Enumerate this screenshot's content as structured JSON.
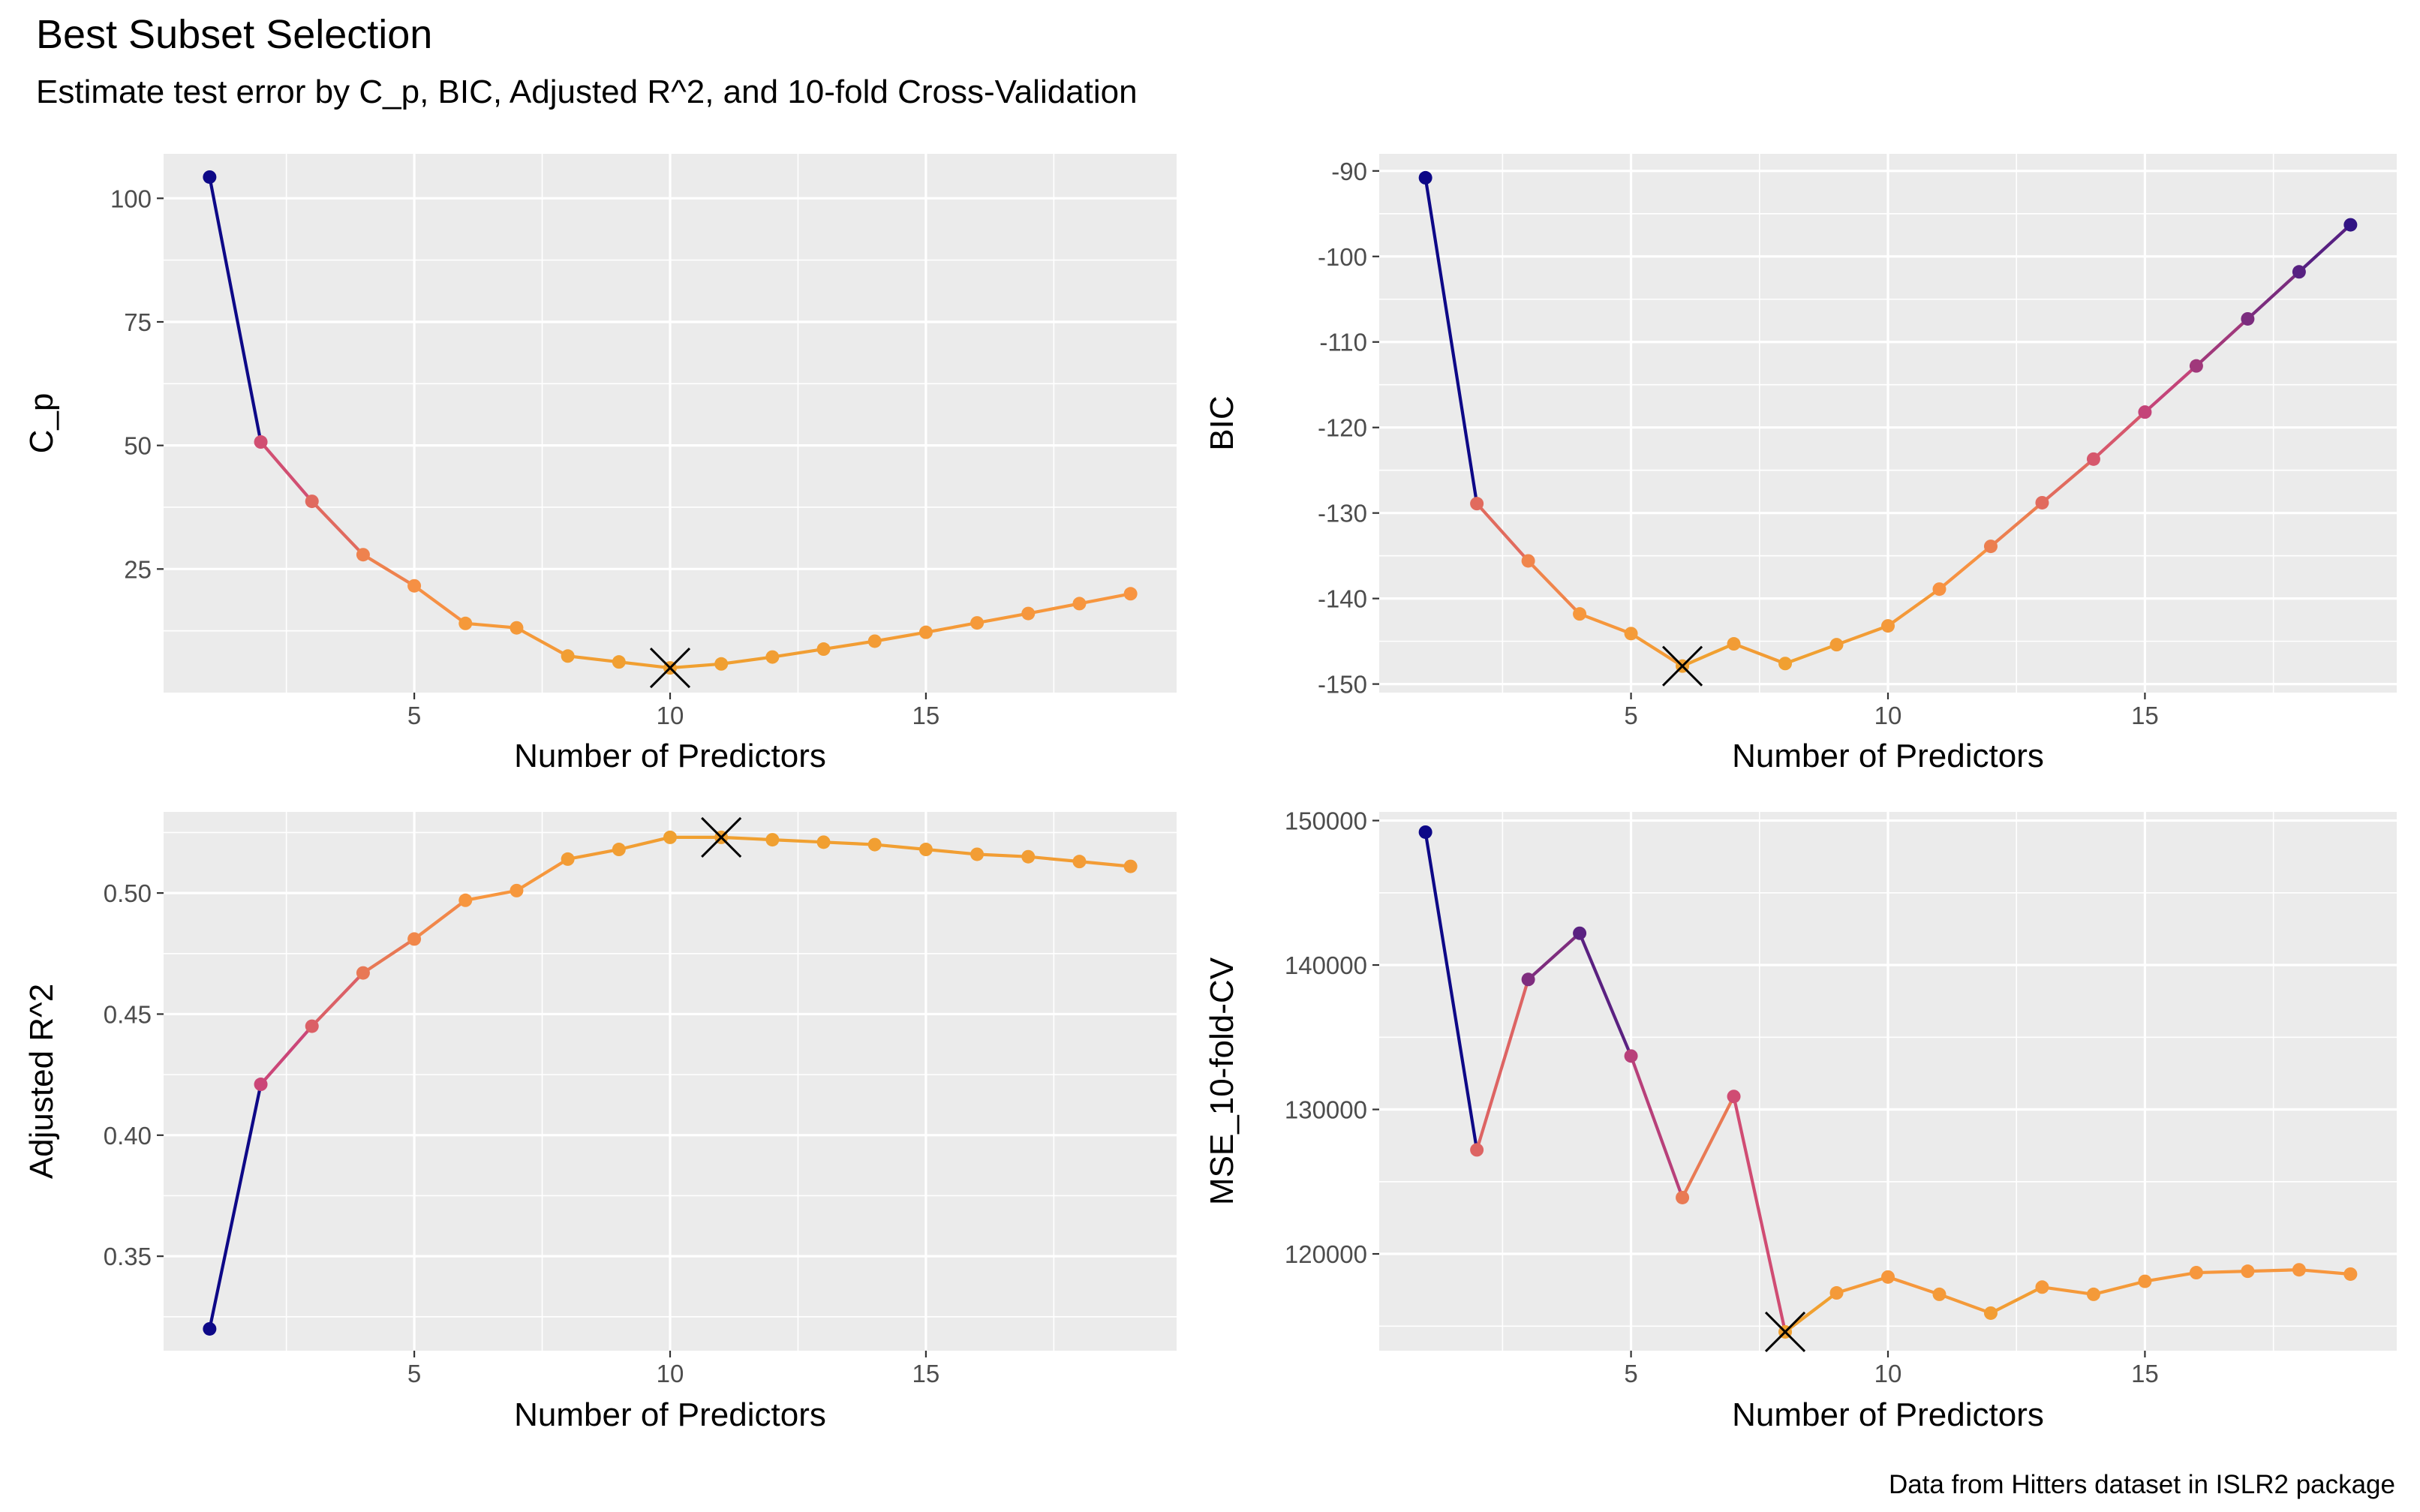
{
  "title": "Best Subset Selection",
  "subtitle": "Estimate test error by C_p, BIC, Adjusted R^2, and 10-fold Cross-Validation",
  "caption": "Data from Hitters dataset in ISLR2 package",
  "colors": {
    "low": "#0D0887",
    "mid": "#CC4678",
    "high": "#F89441",
    "top": "#F0A030"
  },
  "chart_data": [
    {
      "type": "line",
      "xlabel": "Number of Predictors",
      "ylabel": "C_p",
      "x": [
        1,
        2,
        3,
        4,
        5,
        6,
        7,
        8,
        9,
        10,
        11,
        12,
        13,
        14,
        15,
        16,
        17,
        18,
        19
      ],
      "values": [
        104.3,
        50.7,
        38.7,
        27.9,
        21.6,
        14.0,
        13.1,
        7.4,
        6.2,
        5.0,
        5.8,
        7.2,
        8.8,
        10.4,
        12.2,
        14.1,
        16.0,
        18.0,
        20.0
      ],
      "xlim": [
        0.1,
        19.9
      ],
      "ylim": [
        0,
        109
      ],
      "xticks": [
        5,
        10,
        15
      ],
      "yticks": [
        25,
        50,
        75,
        100
      ],
      "yticklabels": [
        "25",
        "50",
        "75",
        "100"
      ],
      "best": {
        "x": 10,
        "y": 5.0
      }
    },
    {
      "type": "line",
      "xlabel": "Number of Predictors",
      "ylabel": "BIC",
      "x": [
        1,
        2,
        3,
        4,
        5,
        6,
        7,
        8,
        9,
        10,
        11,
        12,
        13,
        14,
        15,
        16,
        17,
        18,
        19
      ],
      "values": [
        -90.8,
        -128.9,
        -135.6,
        -141.8,
        -144.1,
        -147.9,
        -145.3,
        -147.6,
        -145.4,
        -143.2,
        -138.9,
        -133.9,
        -128.8,
        -123.7,
        -118.2,
        -112.8,
        -107.3,
        -101.8,
        -96.3
      ],
      "xlim": [
        0.1,
        19.9
      ],
      "ylim": [
        -151,
        -88
      ],
      "xticks": [
        5,
        10,
        15
      ],
      "yticks": [
        -150,
        -140,
        -130,
        -120,
        -110,
        -100,
        -90
      ],
      "yticklabels": [
        "-150",
        "-140",
        "-130",
        "-120",
        "-110",
        "-100",
        "-90"
      ],
      "best": {
        "x": 6,
        "y": -147.9
      }
    },
    {
      "type": "line",
      "xlabel": "Number of Predictors",
      "ylabel": "Adjusted R^2",
      "x": [
        1,
        2,
        3,
        4,
        5,
        6,
        7,
        8,
        9,
        10,
        11,
        12,
        13,
        14,
        15,
        16,
        17,
        18,
        19
      ],
      "values": [
        0.32,
        0.421,
        0.445,
        0.467,
        0.481,
        0.497,
        0.501,
        0.514,
        0.518,
        0.523,
        0.523,
        0.522,
        0.521,
        0.52,
        0.518,
        0.516,
        0.515,
        0.513,
        0.511
      ],
      "xlim": [
        0.1,
        19.9
      ],
      "ylim": [
        0.311,
        0.5335
      ],
      "xticks": [
        5,
        10,
        15
      ],
      "yticks": [
        0.35,
        0.4,
        0.45,
        0.5
      ],
      "yticklabels": [
        "0.35",
        "0.40",
        "0.45",
        "0.50"
      ],
      "best": {
        "x": 11,
        "y": 0.523
      }
    },
    {
      "type": "line",
      "xlabel": "Number of Predictors",
      "ylabel": "MSE_10-fold-CV",
      "x": [
        1,
        2,
        3,
        4,
        5,
        6,
        7,
        8,
        9,
        10,
        11,
        12,
        13,
        14,
        15,
        16,
        17,
        18,
        19
      ],
      "values": [
        149200,
        127200,
        139000,
        142200,
        133700,
        123900,
        130900,
        114600,
        117300,
        118400,
        117200,
        115900,
        117700,
        117200,
        118100,
        118700,
        118800,
        118900,
        118600
      ],
      "xlim": [
        0.1,
        19.9
      ],
      "ylim": [
        113300,
        150600
      ],
      "xticks": [
        5,
        10,
        15
      ],
      "yticks": [
        120000,
        130000,
        140000,
        150000
      ],
      "yticklabels": [
        "120000",
        "130000",
        "140000",
        "150000"
      ],
      "best": {
        "x": 8,
        "y": 114600
      }
    }
  ]
}
